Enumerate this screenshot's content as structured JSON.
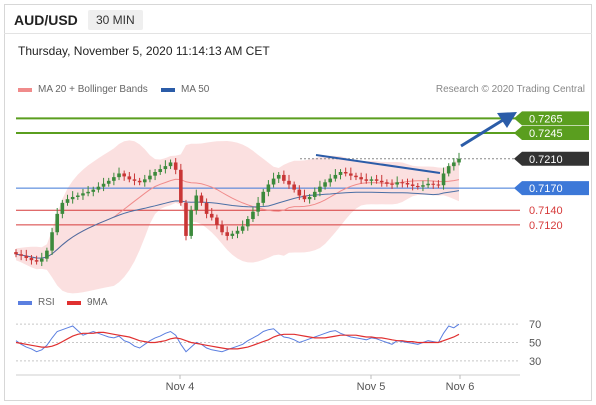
{
  "header": {
    "symbol": "AUD/USD",
    "timeframe": "30 MIN"
  },
  "timestamp": "Thursday, November 5, 2020 11:14:13 AM CET",
  "legend": {
    "bb_label": "MA 20 + Bollinger Bands",
    "ma50_label": "MA 50",
    "rsi_label": "RSI",
    "rsi_ma_label": "9MA"
  },
  "credit": "Research © 2020 Trading Central",
  "colors": {
    "green": "#5a9e1f",
    "blue": "#3c78d8",
    "red": "#d63a3a",
    "dark": "#333333",
    "arrow": "#2b5ca8",
    "candle_up": "#3c8a3c",
    "candle_down": "#c93636",
    "band": "#fad6d6",
    "ma20": "#f08b8b",
    "ma50": "#4a6fa5"
  },
  "chart_data": [
    {
      "type": "candlestick",
      "title": "AUD/USD 30 MIN",
      "x_ticks": [
        "Nov 4",
        "Nov 5",
        "Nov 6"
      ],
      "ylim": [
        0.7045,
        0.729
      ],
      "series": [
        {
          "name": "price",
          "close": [
            0.708,
            0.7078,
            0.7075,
            0.7072,
            0.707,
            0.7074,
            0.7085,
            0.711,
            0.7135,
            0.715,
            0.7155,
            0.7158,
            0.716,
            0.7163,
            0.7165,
            0.7168,
            0.7172,
            0.7176,
            0.718,
            0.7185,
            0.719,
            0.7186,
            0.7182,
            0.718,
            0.7178,
            0.7182,
            0.7187,
            0.7192,
            0.7196,
            0.72,
            0.7205,
            0.7195,
            0.715,
            0.7105,
            0.714,
            0.716,
            0.715,
            0.7135,
            0.713,
            0.712,
            0.711,
            0.7105,
            0.7108,
            0.7112,
            0.7118,
            0.7128,
            0.7138,
            0.715,
            0.7165,
            0.7175,
            0.7183,
            0.7188,
            0.718,
            0.7175,
            0.7168,
            0.716,
            0.7155,
            0.7158,
            0.7165,
            0.7172,
            0.7178,
            0.7183,
            0.7188,
            0.7192,
            0.719,
            0.7187,
            0.7185,
            0.7182,
            0.718,
            0.7182,
            0.718,
            0.7178,
            0.7176,
            0.7175,
            0.7178,
            0.7177,
            0.7175,
            0.7173,
            0.7172,
            0.7174,
            0.7176,
            0.7175,
            0.7174,
            0.719,
            0.72,
            0.7205,
            0.721
          ]
        }
      ],
      "levels": [
        {
          "value": 0.7265,
          "label": "0.7265",
          "color": "green"
        },
        {
          "value": 0.7245,
          "label": "0.7245",
          "color": "green"
        },
        {
          "value": 0.721,
          "label": "0.7210",
          "color": "dark"
        },
        {
          "value": 0.717,
          "label": "0.7170",
          "color": "blue"
        },
        {
          "value": 0.714,
          "label": "0.7140",
          "color": "red"
        },
        {
          "value": 0.712,
          "label": "0.7120",
          "color": "red"
        }
      ]
    },
    {
      "type": "line",
      "title": "RSI",
      "ylim": [
        20,
        80
      ],
      "y_ticks": [
        70,
        50,
        30
      ],
      "series": [
        {
          "name": "RSI",
          "values": [
            52,
            48,
            45,
            43,
            40,
            42,
            47,
            55,
            62,
            64,
            66,
            68,
            63,
            58,
            60,
            62,
            60,
            58,
            56,
            55,
            57,
            52,
            50,
            46,
            44,
            48,
            52,
            55,
            57,
            60,
            62,
            58,
            48,
            40,
            45,
            50,
            48,
            44,
            42,
            41,
            40,
            42,
            44,
            46,
            48,
            52,
            55,
            58,
            62,
            64,
            65,
            60,
            56,
            55,
            53,
            50,
            52,
            54,
            56,
            58,
            60,
            62,
            63,
            60,
            58,
            56,
            55,
            54,
            53,
            55,
            54,
            52,
            50,
            48,
            52,
            51,
            50,
            49,
            48,
            50,
            52,
            51,
            50,
            60,
            68,
            66,
            70
          ]
        },
        {
          "name": "9MA",
          "values": [
            50,
            49,
            48,
            47,
            46,
            45,
            45,
            46,
            48,
            51,
            54,
            57,
            59,
            60,
            60,
            60,
            61,
            61,
            60,
            59,
            58,
            57,
            56,
            54,
            52,
            51,
            50,
            50,
            51,
            52,
            54,
            55,
            54,
            52,
            50,
            49,
            48,
            47,
            46,
            45,
            44,
            43,
            43,
            43,
            44,
            45,
            47,
            49,
            51,
            53,
            56,
            58,
            59,
            59,
            59,
            58,
            57,
            56,
            55,
            55,
            55,
            56,
            57,
            58,
            58,
            58,
            58,
            57,
            56,
            56,
            55,
            55,
            54,
            53,
            52,
            52,
            51,
            51,
            50,
            50,
            50,
            50,
            50,
            52,
            54,
            56,
            59
          ]
        }
      ]
    }
  ]
}
